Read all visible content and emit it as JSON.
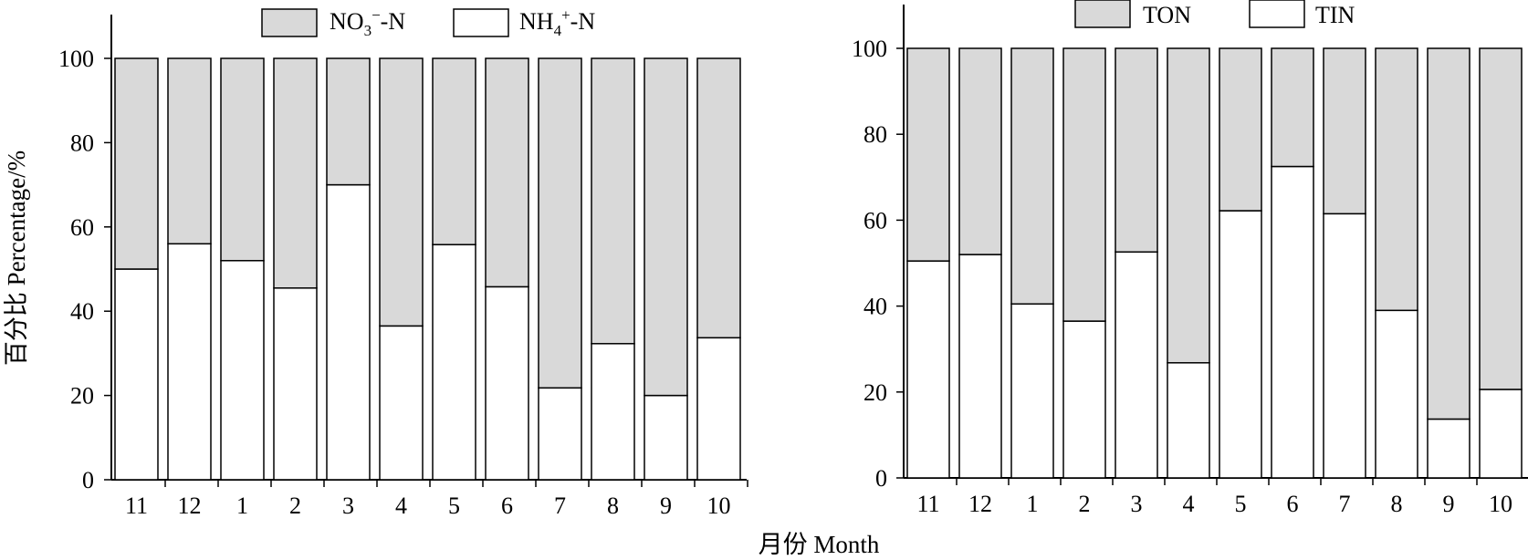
{
  "y_axis_label": "百分比 Percentage/%",
  "x_axis_label": "月份 Month",
  "chart_data": [
    {
      "type": "bar",
      "stacked": true,
      "categories": [
        "11",
        "12",
        "1",
        "2",
        "3",
        "4",
        "5",
        "6",
        "7",
        "8",
        "9",
        "10"
      ],
      "series": [
        {
          "name": "NH4+-N",
          "color": "#ffffff",
          "values": [
            50,
            56,
            52,
            45.5,
            70,
            36.5,
            55.8,
            45.8,
            21.8,
            32.3,
            20,
            33.7
          ]
        },
        {
          "name": "NO3−-N",
          "color": "#d9d9d9",
          "values": [
            50,
            44,
            48,
            54.5,
            30,
            63.5,
            44.2,
            54.2,
            78.2,
            67.7,
            80,
            66.3
          ]
        }
      ],
      "legend": {
        "position": "top-center"
      },
      "ylim": [
        0,
        100
      ],
      "yticks": [
        "0",
        "20",
        "40",
        "60",
        "80",
        "100"
      ]
    },
    {
      "type": "bar",
      "stacked": true,
      "categories": [
        "11",
        "12",
        "1",
        "2",
        "3",
        "4",
        "5",
        "6",
        "7",
        "8",
        "9",
        "10"
      ],
      "series": [
        {
          "name": "TIN",
          "color": "#ffffff",
          "values": [
            50.5,
            52,
            40.5,
            36.5,
            52.6,
            26.8,
            62.2,
            72.5,
            61.5,
            39,
            13.7,
            20.6
          ]
        },
        {
          "name": "TON",
          "color": "#d9d9d9",
          "values": [
            49.5,
            48,
            59.5,
            63.5,
            47.4,
            73.2,
            37.8,
            27.5,
            38.5,
            61,
            86.3,
            79.4
          ]
        }
      ],
      "legend": {
        "position": "top-center"
      },
      "ylim": [
        0,
        100
      ],
      "yticks": [
        "0",
        "20",
        "40",
        "60",
        "80",
        "100"
      ]
    }
  ]
}
